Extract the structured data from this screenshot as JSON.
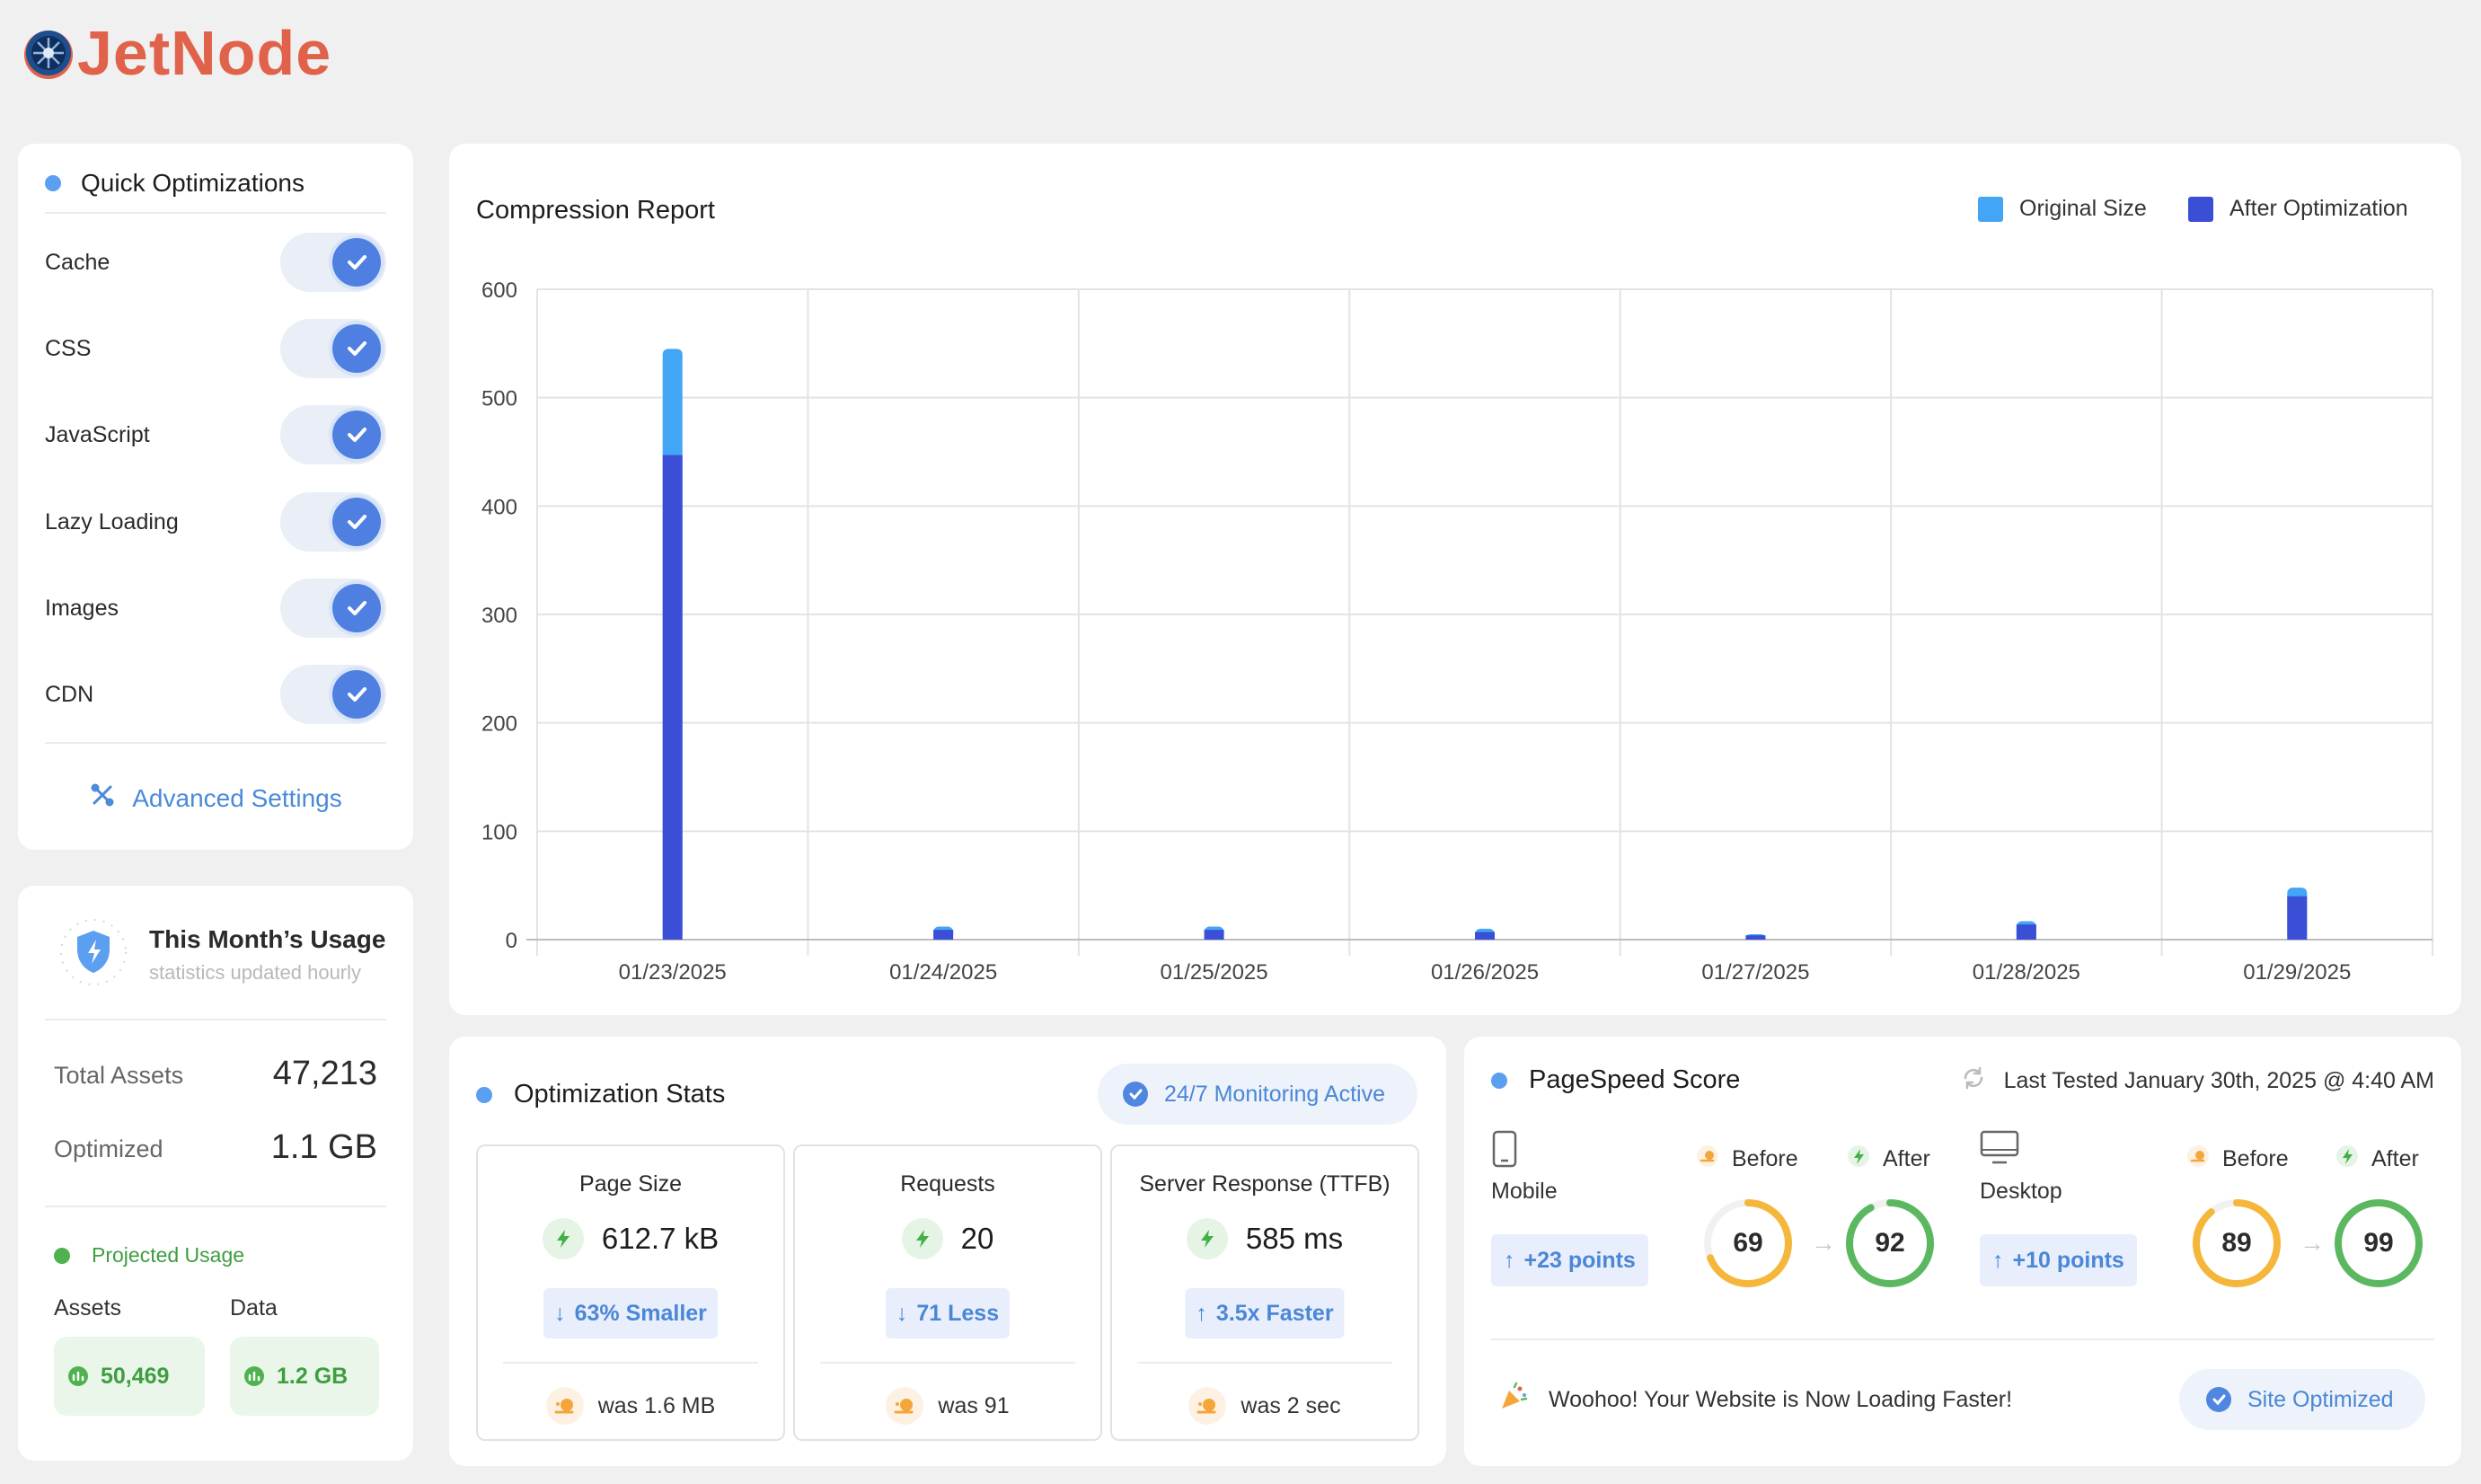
{
  "brand": {
    "name": "JetNode",
    "color": "#e0624a"
  },
  "quick": {
    "title": "Quick Optimizations",
    "items": [
      {
        "label": "Cache",
        "enabled": true
      },
      {
        "label": "CSS",
        "enabled": true
      },
      {
        "label": "JavaScript",
        "enabled": true
      },
      {
        "label": "Lazy Loading",
        "enabled": true
      },
      {
        "label": "Images",
        "enabled": true
      },
      {
        "label": "CDN",
        "enabled": true
      }
    ],
    "advanced": "Advanced Settings"
  },
  "usage": {
    "title": "This Month’s Usage",
    "subtitle": "statistics updated hourly",
    "total_assets_label": "Total Assets",
    "total_assets": "47,213",
    "optimized_label": "Optimized",
    "optimized": "1.1 GB",
    "projected_label": "Projected Usage",
    "assets_label": "Assets",
    "assets": "50,469",
    "data_label": "Data",
    "data": "1.2 GB"
  },
  "chart_data": {
    "type": "bar",
    "title": "Compression Report",
    "categories": [
      "01/23/2025",
      "01/24/2025",
      "01/25/2025",
      "01/26/2025",
      "01/27/2025",
      "01/28/2025",
      "01/29/2025"
    ],
    "series": [
      {
        "name": "Original Size",
        "color": "#42a5f5",
        "values": [
          545,
          12,
          12,
          10,
          5,
          17,
          48
        ]
      },
      {
        "name": "After Optimization",
        "color": "#3b4fd6",
        "values": [
          447,
          9,
          9,
          7,
          4,
          14,
          40
        ]
      }
    ],
    "ylim": [
      0,
      600
    ],
    "yticks": [
      0,
      100,
      200,
      300,
      400,
      500,
      600
    ],
    "stacked_overlay": true,
    "grid": true,
    "legend": "top-right"
  },
  "stats": {
    "title": "Optimization Stats",
    "monitoring": "24/7 Monitoring Active",
    "cards": [
      {
        "title": "Page Size",
        "value": "612.7 kB",
        "change": "63% Smaller",
        "dir": "down",
        "was": "was 1.6 MB"
      },
      {
        "title": "Requests",
        "value": "20",
        "change": "71 Less",
        "dir": "down",
        "was": "was 91"
      },
      {
        "title": "Server Response (TTFB)",
        "value": "585 ms",
        "change": "3.5x Faster",
        "dir": "up",
        "was": "was 2 sec"
      }
    ]
  },
  "pagespeed": {
    "title": "PageSpeed Score",
    "last_tested": "Last Tested January 30th, 2025 @ 4:40 AM",
    "before_label": "Before",
    "after_label": "After",
    "mobile": {
      "label": "Mobile",
      "points": "+23 points",
      "before": "69",
      "after": "92"
    },
    "desktop": {
      "label": "Desktop",
      "points": "+10 points",
      "before": "89",
      "after": "99"
    },
    "message": "Woohoo! Your Website is Now Loading Faster!",
    "status": "Site Optimized"
  }
}
